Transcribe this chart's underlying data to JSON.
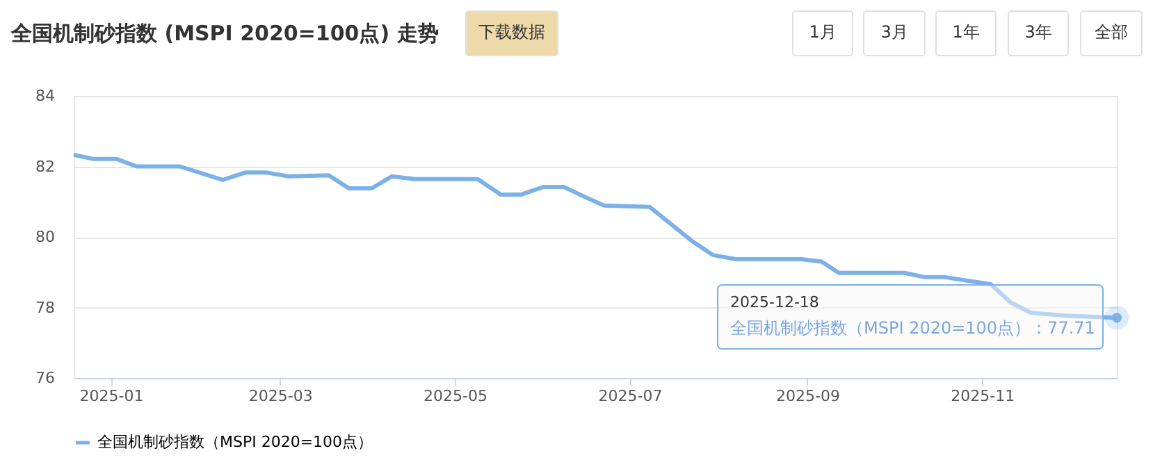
{
  "chart_data": {
    "type": "line",
    "title": "全国机制砂指数 (MSPI 2020=100点) 走势",
    "annotations": [
      "下载数据",
      "1月",
      "3月",
      "1年",
      "3年",
      "全部",
      {
        "text": "2025-12-18\n全国机制砂指数（MSPI 2020=100点）：77.71",
        "x": "2025-12-18",
        "y": 77.71
      }
    ],
    "x": [
      "2024-12-19",
      "2024-12-26",
      "2025-01-03",
      "2025-01-10",
      "2025-01-25",
      "2025-02-09",
      "2025-02-17",
      "2025-02-24",
      "2025-03-04",
      "2025-03-18",
      "2025-03-25",
      "2025-04-02",
      "2025-04-09",
      "2025-04-17",
      "2025-05-09",
      "2025-05-17",
      "2025-05-24",
      "2025-06-01",
      "2025-06-08",
      "2025-06-15",
      "2025-06-22",
      "2025-07-08",
      "2025-07-23",
      "2025-07-30",
      "2025-08-07",
      "2025-08-30",
      "2025-09-06",
      "2025-09-12",
      "2025-10-05",
      "2025-10-12",
      "2025-10-19",
      "2025-11-04",
      "2025-11-11",
      "2025-11-18",
      "2025-11-30",
      "2025-12-18"
    ],
    "series": [
      {
        "name": "全国机制砂指数（MSPI 2020=100点）",
        "color": "#7cb1e8",
        "values": [
          82.33,
          82.21,
          82.21,
          82.0,
          82.0,
          81.62,
          81.83,
          81.83,
          81.72,
          81.75,
          81.38,
          81.38,
          81.72,
          81.64,
          81.64,
          81.2,
          81.2,
          81.42,
          81.42,
          81.15,
          80.89,
          80.85,
          79.87,
          79.49,
          79.37,
          79.37,
          79.3,
          78.98,
          78.98,
          78.86,
          78.86,
          78.66,
          78.14,
          77.85,
          77.77,
          77.71
        ]
      }
    ],
    "xlim": [
      "2024-12-19",
      "2025-12-18"
    ],
    "xticks": [
      "2025-01",
      "2025-03",
      "2025-05",
      "2025-07",
      "2025-09",
      "2025-11"
    ],
    "ylim": [
      76,
      84
    ],
    "yticks": [
      76,
      78,
      80,
      82,
      84
    ],
    "grid": "y",
    "legend": "bottom",
    "marker": "none",
    "line_style": "solid"
  }
}
